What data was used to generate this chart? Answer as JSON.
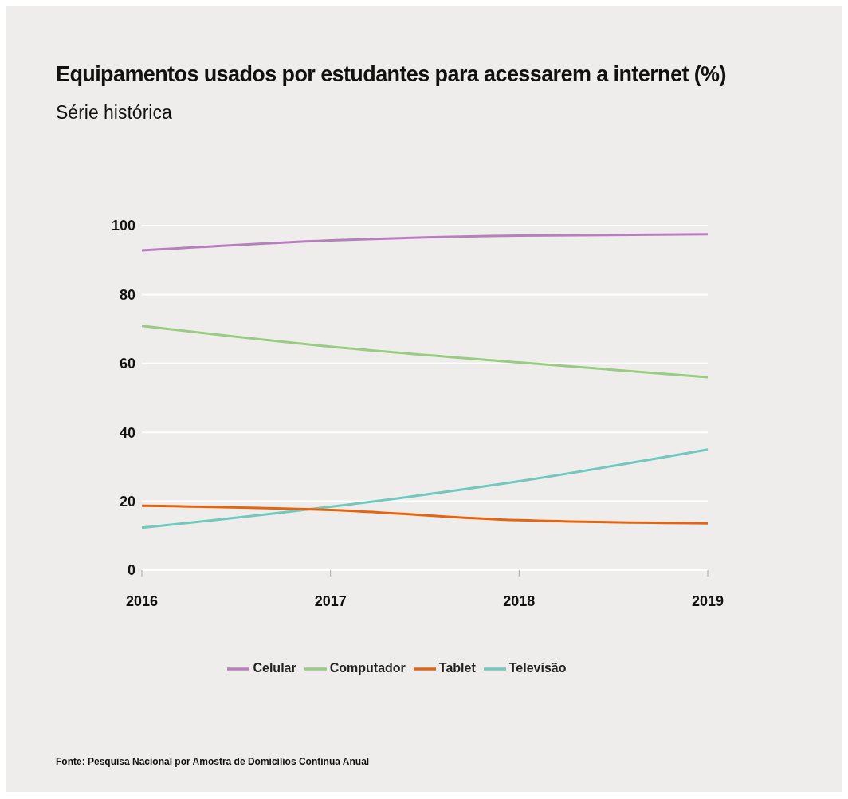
{
  "chart_data": {
    "type": "line",
    "title": "Equipamentos usados por estudantes para acessarem a internet (%)",
    "subtitle": "Série histórica",
    "categories": [
      "2016",
      "2017",
      "2018",
      "2019"
    ],
    "series": [
      {
        "name": "Celular",
        "color": "#b77fbd",
        "values": [
          92.8,
          95.7,
          97.1,
          97.5
        ]
      },
      {
        "name": "Computador",
        "color": "#98cc82",
        "values": [
          70.9,
          64.9,
          60.3,
          56.0
        ]
      },
      {
        "name": "Televisão",
        "color": "#6fc9be",
        "values": [
          12.3,
          18.4,
          25.8,
          35.0
        ]
      },
      {
        "name": "Tablet",
        "color": "#e8630f",
        "values": [
          18.7,
          17.5,
          14.5,
          13.6
        ]
      }
    ],
    "ylim": [
      0,
      100
    ],
    "yticks": [
      0,
      20,
      40,
      60,
      80,
      100
    ],
    "grid": "y",
    "legend": "bottom",
    "marker": "none",
    "line_style": "solid",
    "annotations": [
      "Fonte: Pesquisa Nacional por Amostra de Domicílios Contínua Anual"
    ]
  }
}
